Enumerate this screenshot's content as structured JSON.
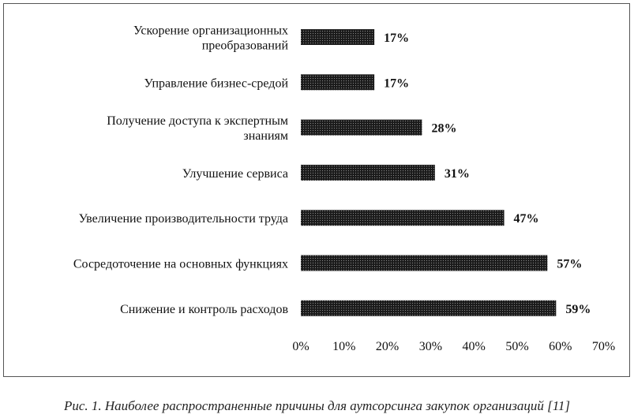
{
  "chart_data": {
    "type": "bar",
    "orientation": "horizontal",
    "categories": [
      "Ускорение организационных преобразований",
      "Управление бизнес-средой",
      "Получение доступа к экспертным знаниям",
      "Улучшение сервиса",
      "Увеличение производительности труда",
      "Сосредоточение на основных функциях",
      "Снижение и контроль расходов"
    ],
    "category_lines": [
      [
        "Ускорение организационных",
        "преобразований"
      ],
      [
        "Управление бизнес-средой"
      ],
      [
        "Получение доступа к экспертным",
        "знаниям"
      ],
      [
        "Улучшение сервиса"
      ],
      [
        "Увеличение производительности труда"
      ],
      [
        "Сосредоточение на основных функциях"
      ],
      [
        "Снижение и контроль расходов"
      ]
    ],
    "values": [
      17,
      17,
      28,
      31,
      47,
      57,
      59
    ],
    "value_labels": [
      "17%",
      "17%",
      "28%",
      "31%",
      "47%",
      "57%",
      "59%"
    ],
    "xlim": [
      0,
      70
    ],
    "xticks": [
      "0%",
      "10%",
      "20%",
      "30%",
      "40%",
      "50%",
      "60%",
      "70%"
    ],
    "title": "",
    "xlabel": "",
    "ylabel": "",
    "grid": false,
    "legend": "none",
    "bar_fill": "dotted-black"
  },
  "caption": "Рис. 1. Наиболее распространенные причины для аутсорсинга закупок организаций [11]"
}
